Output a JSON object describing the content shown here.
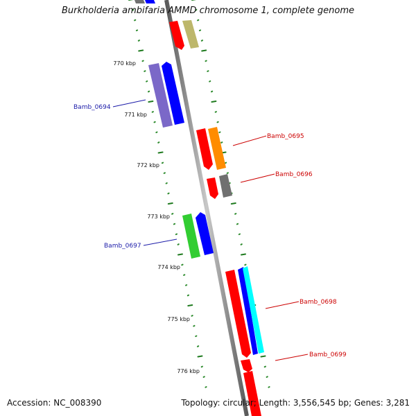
{
  "title": "Burkholderia ambifaria AMMD chromosome 1, complete genome",
  "footer": {
    "accession": "Accession: NC_008390",
    "summary": "Topology: circular; Length: 3,556,545 bp; Genes: 3,281"
  },
  "tick_labels": [
    "770 kbp",
    "771 kbp",
    "772 kbp",
    "773 kbp",
    "774 kbp",
    "775 kbp",
    "776 kbp"
  ],
  "gene_labels": [
    {
      "text": "Bamb_0694",
      "color": "#1a1aa8"
    },
    {
      "text": "Bamb_0695",
      "color": "#cc0000"
    },
    {
      "text": "Bamb_0696",
      "color": "#cc0000"
    },
    {
      "text": "Bamb_0697",
      "color": "#1a1aa8"
    },
    {
      "text": "Bamb_0698",
      "color": "#cc0000"
    },
    {
      "text": "Bamb_0699",
      "color": "#cc0000"
    }
  ],
  "colors": {
    "backbone": "#8c8c8c",
    "tick_major": "#1e7a1e",
    "tick_minor": "#2e8b2e",
    "gene_red": "#ff0000",
    "gene_blue": "#0000ff",
    "gene_purple": "#7b68c8",
    "gene_orange": "#ff8c00",
    "gene_gray": "#707070",
    "gene_green": "#32cd32",
    "gene_olive": "#bdb76b",
    "gene_cyan": "#00ffff"
  }
}
